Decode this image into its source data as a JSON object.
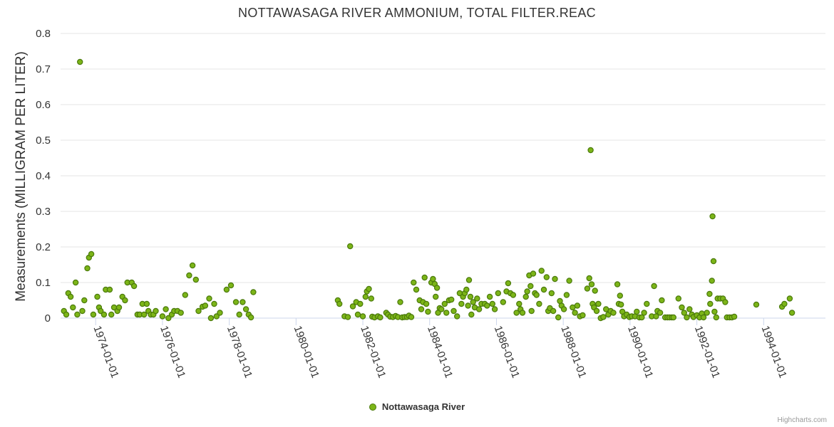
{
  "colors": {
    "series": "#7cb518",
    "series_border": "#4b7a0c",
    "grid": "#e6e6e6",
    "axis": "#ccd6eb"
  },
  "credits": "Highcharts.com",
  "chart_data": {
    "type": "scatter",
    "title": "NOTTAWASAGA RIVER AMMONIUM, TOTAL FILTER.REAC",
    "xlabel": "",
    "ylabel": "Measurements (MILLIGRAM PER LITER)",
    "ylim": [
      0,
      0.8
    ],
    "yticks": [
      "0",
      "0.1",
      "0.2",
      "0.3",
      "0.4",
      "0.5",
      "0.6",
      "0.7",
      "0.8"
    ],
    "xlim": [
      1972.95,
      1995.85
    ],
    "xticks": [
      {
        "label": "1974-01-01",
        "value": 1974.0
      },
      {
        "label": "1976-01-01",
        "value": 1976.0
      },
      {
        "label": "1978-01-01",
        "value": 1978.0
      },
      {
        "label": "1980-01-01",
        "value": 1980.0
      },
      {
        "label": "1982-01-01",
        "value": 1982.0
      },
      {
        "label": "1984-01-01",
        "value": 1984.0
      },
      {
        "label": "1986-01-01",
        "value": 1986.0
      },
      {
        "label": "1988-01-01",
        "value": 1988.0
      },
      {
        "label": "1990-01-01",
        "value": 1990.0
      },
      {
        "label": "1992-01-01",
        "value": 1992.0
      },
      {
        "label": "1994-01-01",
        "value": 1994.0
      }
    ],
    "legend": "bottom-center",
    "series": [
      {
        "name": "Nottawasaga River",
        "points": [
          [
            1973.05,
            0.02
          ],
          [
            1973.12,
            0.01
          ],
          [
            1973.18,
            0.07
          ],
          [
            1973.25,
            0.06
          ],
          [
            1973.32,
            0.03
          ],
          [
            1973.4,
            0.1
          ],
          [
            1973.45,
            0.01
          ],
          [
            1973.53,
            0.72
          ],
          [
            1973.6,
            0.02
          ],
          [
            1973.66,
            0.05
          ],
          [
            1973.75,
            0.14
          ],
          [
            1973.8,
            0.17
          ],
          [
            1973.87,
            0.18
          ],
          [
            1973.93,
            0.01
          ],
          [
            1974.05,
            0.06
          ],
          [
            1974.1,
            0.03
          ],
          [
            1974.15,
            0.02
          ],
          [
            1974.25,
            0.01
          ],
          [
            1974.3,
            0.08
          ],
          [
            1974.42,
            0.08
          ],
          [
            1974.47,
            0.01
          ],
          [
            1974.55,
            0.03
          ],
          [
            1974.65,
            0.02
          ],
          [
            1974.7,
            0.03
          ],
          [
            1974.8,
            0.06
          ],
          [
            1974.88,
            0.05
          ],
          [
            1974.95,
            0.1
          ],
          [
            1975.08,
            0.1
          ],
          [
            1975.15,
            0.09
          ],
          [
            1975.25,
            0.01
          ],
          [
            1975.32,
            0.01
          ],
          [
            1975.4,
            0.04
          ],
          [
            1975.45,
            0.01
          ],
          [
            1975.53,
            0.04
          ],
          [
            1975.58,
            0.02
          ],
          [
            1975.65,
            0.01
          ],
          [
            1975.73,
            0.01
          ],
          [
            1975.8,
            0.02
          ],
          [
            1976.0,
            0.005
          ],
          [
            1976.1,
            0.025
          ],
          [
            1976.18,
            0.0
          ],
          [
            1976.28,
            0.01
          ],
          [
            1976.35,
            0.02
          ],
          [
            1976.45,
            0.02
          ],
          [
            1976.55,
            0.015
          ],
          [
            1976.68,
            0.065
          ],
          [
            1976.8,
            0.12
          ],
          [
            1976.9,
            0.148
          ],
          [
            1977.0,
            0.108
          ],
          [
            1977.08,
            0.02
          ],
          [
            1977.2,
            0.032
          ],
          [
            1977.28,
            0.035
          ],
          [
            1977.4,
            0.055
          ],
          [
            1977.45,
            0.0
          ],
          [
            1977.55,
            0.04
          ],
          [
            1977.62,
            0.005
          ],
          [
            1977.72,
            0.015
          ],
          [
            1977.92,
            0.08
          ],
          [
            1978.05,
            0.092
          ],
          [
            1978.2,
            0.045
          ],
          [
            1978.3,
            0.01
          ],
          [
            1978.4,
            0.045
          ],
          [
            1978.5,
            0.025
          ],
          [
            1978.58,
            0.01
          ],
          [
            1978.65,
            0.002
          ],
          [
            1978.72,
            0.073
          ],
          [
            1981.25,
            0.05
          ],
          [
            1981.3,
            0.04
          ],
          [
            1981.45,
            0.005
          ],
          [
            1981.55,
            0.003
          ],
          [
            1981.62,
            0.202
          ],
          [
            1981.7,
            0.033
          ],
          [
            1981.8,
            0.045
          ],
          [
            1981.85,
            0.01
          ],
          [
            1981.92,
            0.04
          ],
          [
            1982.0,
            0.005
          ],
          [
            1982.08,
            0.06
          ],
          [
            1982.12,
            0.075
          ],
          [
            1982.18,
            0.082
          ],
          [
            1982.25,
            0.055
          ],
          [
            1982.28,
            0.004
          ],
          [
            1982.35,
            0.002
          ],
          [
            1982.45,
            0.005
          ],
          [
            1982.52,
            0.002
          ],
          [
            1982.7,
            0.015
          ],
          [
            1982.75,
            0.01
          ],
          [
            1982.82,
            0.004
          ],
          [
            1982.9,
            0.003
          ],
          [
            1982.98,
            0.006
          ],
          [
            1983.05,
            0.003
          ],
          [
            1983.12,
            0.045
          ],
          [
            1983.18,
            0.002
          ],
          [
            1983.25,
            0.003
          ],
          [
            1983.32,
            0.003
          ],
          [
            1983.38,
            0.007
          ],
          [
            1983.45,
            0.003
          ],
          [
            1983.52,
            0.1
          ],
          [
            1983.6,
            0.08
          ],
          [
            1983.7,
            0.05
          ],
          [
            1983.75,
            0.025
          ],
          [
            1983.8,
            0.045
          ],
          [
            1983.85,
            0.114
          ],
          [
            1983.9,
            0.04
          ],
          [
            1983.95,
            0.018
          ],
          [
            1984.05,
            0.1
          ],
          [
            1984.1,
            0.11
          ],
          [
            1984.15,
            0.096
          ],
          [
            1984.18,
            0.06
          ],
          [
            1984.22,
            0.085
          ],
          [
            1984.25,
            0.015
          ],
          [
            1984.3,
            0.028
          ],
          [
            1984.35,
            0.025
          ],
          [
            1984.45,
            0.04
          ],
          [
            1984.5,
            0.015
          ],
          [
            1984.58,
            0.05
          ],
          [
            1984.65,
            0.052
          ],
          [
            1984.72,
            0.02
          ],
          [
            1984.82,
            0.005
          ],
          [
            1984.9,
            0.07
          ],
          [
            1984.95,
            0.04
          ],
          [
            1985.0,
            0.06
          ],
          [
            1985.05,
            0.07
          ],
          [
            1985.1,
            0.08
          ],
          [
            1985.15,
            0.035
          ],
          [
            1985.18,
            0.107
          ],
          [
            1985.22,
            0.06
          ],
          [
            1985.25,
            0.01
          ],
          [
            1985.3,
            0.045
          ],
          [
            1985.35,
            0.03
          ],
          [
            1985.42,
            0.055
          ],
          [
            1985.48,
            0.025
          ],
          [
            1985.55,
            0.04
          ],
          [
            1985.65,
            0.04
          ],
          [
            1985.72,
            0.035
          ],
          [
            1985.8,
            0.06
          ],
          [
            1985.88,
            0.04
          ],
          [
            1985.95,
            0.025
          ],
          [
            1986.05,
            0.07
          ],
          [
            1986.2,
            0.045
          ],
          [
            1986.3,
            0.075
          ],
          [
            1986.35,
            0.098
          ],
          [
            1986.42,
            0.07
          ],
          [
            1986.5,
            0.065
          ],
          [
            1986.6,
            0.015
          ],
          [
            1986.68,
            0.04
          ],
          [
            1986.72,
            0.025
          ],
          [
            1986.78,
            0.015
          ],
          [
            1986.88,
            0.06
          ],
          [
            1986.92,
            0.075
          ],
          [
            1986.98,
            0.12
          ],
          [
            1987.02,
            0.09
          ],
          [
            1987.05,
            0.02
          ],
          [
            1987.1,
            0.125
          ],
          [
            1987.15,
            0.07
          ],
          [
            1987.2,
            0.065
          ],
          [
            1987.28,
            0.04
          ],
          [
            1987.35,
            0.133
          ],
          [
            1987.42,
            0.08
          ],
          [
            1987.5,
            0.115
          ],
          [
            1987.55,
            0.02
          ],
          [
            1987.6,
            0.028
          ],
          [
            1987.65,
            0.07
          ],
          [
            1987.7,
            0.02
          ],
          [
            1987.75,
            0.11
          ],
          [
            1987.85,
            0.002
          ],
          [
            1987.9,
            0.048
          ],
          [
            1987.95,
            0.035
          ],
          [
            1988.02,
            0.025
          ],
          [
            1988.1,
            0.065
          ],
          [
            1988.18,
            0.105
          ],
          [
            1988.28,
            0.03
          ],
          [
            1988.35,
            0.015
          ],
          [
            1988.42,
            0.035
          ],
          [
            1988.5,
            0.005
          ],
          [
            1988.58,
            0.008
          ],
          [
            1988.72,
            0.083
          ],
          [
            1988.78,
            0.112
          ],
          [
            1988.82,
            0.472
          ],
          [
            1988.85,
            0.095
          ],
          [
            1988.88,
            0.04
          ],
          [
            1988.92,
            0.03
          ],
          [
            1988.95,
            0.077
          ],
          [
            1989.0,
            0.02
          ],
          [
            1989.05,
            0.04
          ],
          [
            1989.12,
            0.0
          ],
          [
            1989.2,
            0.003
          ],
          [
            1989.28,
            0.025
          ],
          [
            1989.35,
            0.01
          ],
          [
            1989.42,
            0.02
          ],
          [
            1989.5,
            0.015
          ],
          [
            1989.62,
            0.095
          ],
          [
            1989.66,
            0.04
          ],
          [
            1989.7,
            0.063
          ],
          [
            1989.73,
            0.038
          ],
          [
            1989.77,
            0.018
          ],
          [
            1989.82,
            0.005
          ],
          [
            1989.9,
            0.01
          ],
          [
            1989.98,
            0.003
          ],
          [
            1990.05,
            0.005
          ],
          [
            1990.15,
            0.005
          ],
          [
            1990.2,
            0.018
          ],
          [
            1990.28,
            0.002
          ],
          [
            1990.35,
            0.002
          ],
          [
            1990.42,
            0.015
          ],
          [
            1990.5,
            0.04
          ],
          [
            1990.65,
            0.005
          ],
          [
            1990.72,
            0.09
          ],
          [
            1990.78,
            0.005
          ],
          [
            1990.82,
            0.02
          ],
          [
            1990.9,
            0.015
          ],
          [
            1990.95,
            0.05
          ],
          [
            1991.05,
            0.002
          ],
          [
            1991.12,
            0.002
          ],
          [
            1991.18,
            0.002
          ],
          [
            1991.25,
            0.002
          ],
          [
            1991.3,
            0.002
          ],
          [
            1991.45,
            0.055
          ],
          [
            1991.55,
            0.03
          ],
          [
            1991.62,
            0.015
          ],
          [
            1991.7,
            0.002
          ],
          [
            1991.78,
            0.025
          ],
          [
            1991.85,
            0.01
          ],
          [
            1991.9,
            0.003
          ],
          [
            1992.0,
            0.008
          ],
          [
            1992.08,
            0.002
          ],
          [
            1992.15,
            0.013
          ],
          [
            1992.2,
            0.002
          ],
          [
            1992.3,
            0.015
          ],
          [
            1992.38,
            0.068
          ],
          [
            1992.4,
            0.04
          ],
          [
            1992.45,
            0.105
          ],
          [
            1992.47,
            0.286
          ],
          [
            1992.5,
            0.16
          ],
          [
            1992.53,
            0.018
          ],
          [
            1992.58,
            0.002
          ],
          [
            1992.62,
            0.055
          ],
          [
            1992.7,
            0.055
          ],
          [
            1992.78,
            0.055
          ],
          [
            1992.85,
            0.045
          ],
          [
            1992.9,
            0.002
          ],
          [
            1992.98,
            0.002
          ],
          [
            1993.05,
            0.002
          ],
          [
            1993.12,
            0.004
          ],
          [
            1993.78,
            0.038
          ],
          [
            1994.55,
            0.032
          ],
          [
            1994.62,
            0.04
          ],
          [
            1994.78,
            0.055
          ],
          [
            1994.85,
            0.015
          ]
        ]
      }
    ]
  }
}
